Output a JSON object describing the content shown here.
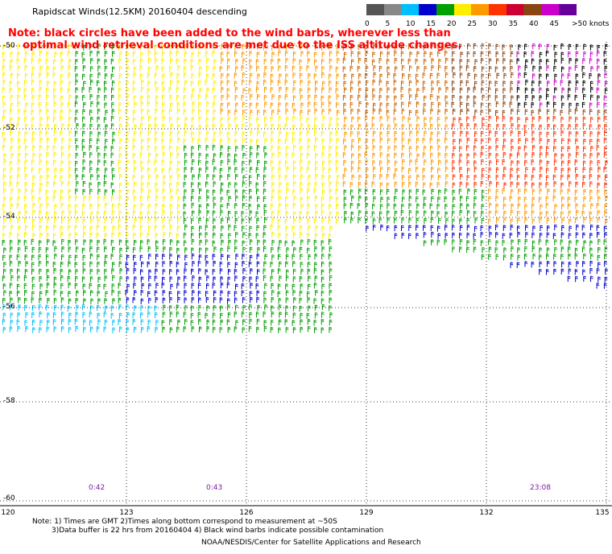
{
  "title": "Rapidscat Winds(12.5KM) 20160404 descending",
  "note": [
    "Note: black circles have been added to the wind barbs, wherever less than",
    "    optimal wind retrieval conditions are met due to the ISS altitude changes."
  ],
  "scale": {
    "labels": [
      "0",
      "5",
      "10",
      "15",
      "20",
      "25",
      "30",
      "35",
      "40",
      "45",
      ">50 knots"
    ],
    "colors": [
      "#555555",
      "#888888",
      "#00bfff",
      "#0000cd",
      "#00a000",
      "#ffee00",
      "#ff9900",
      "#ff3300",
      "#cc0033",
      "#8b4513",
      "#cc00cc",
      "#660099"
    ]
  },
  "lat_labels": [
    "-50",
    "-52",
    "-54",
    "-56",
    "-58",
    "-60"
  ],
  "lon_labels": [
    "120",
    "123",
    "126",
    "129",
    "132",
    "135"
  ],
  "time_labels": [
    "0:42",
    "0:43",
    "23:08"
  ],
  "footer": {
    "line1": "Note: 1) Times are GMT 2)Times along bottom correspond to measurement at ~50S",
    "line2": "3)Data buffer is 22 hrs from 20160404 4) Black wind barbs indicate possible contamination",
    "credit": "NOAA/NESDIS/Center for Satellite Applications and Research"
  }
}
